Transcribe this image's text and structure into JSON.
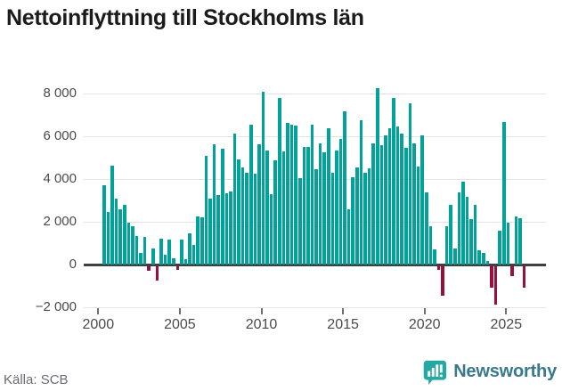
{
  "title": "Nettoinflyttning till Stockholms län",
  "source": "Källa: SCB",
  "logo": {
    "text": "Newsworthy",
    "icon": "newsworthy-bubble-chart-icon"
  },
  "colors": {
    "positive": "#00a29a",
    "negative": "#990f3d",
    "grid": "#e3e3e3",
    "zero_line": "#3f3f3f",
    "axis_text": "#4a4a4a",
    "title_text": "#1b1b1b",
    "source_text": "#6b6b73",
    "logo_text": "#39798e",
    "logo_icon_bg": "#26a8a2"
  },
  "chart_data": {
    "type": "bar",
    "title": "Nettoinflyttning till Stockholms län",
    "frequency": "quarterly",
    "start": "2000 Q1",
    "end": "2025 Q4",
    "grid": "horizontal",
    "legend": "none",
    "ylim": [
      -2400,
      8600
    ],
    "y_ticks": [
      {
        "label": "8 000",
        "value": 8000
      },
      {
        "label": "6 000",
        "value": 6000
      },
      {
        "label": "4 000",
        "value": 4000
      },
      {
        "label": "2 000",
        "value": 2000
      },
      {
        "label": "0",
        "value": 0
      },
      {
        "label": "−2 000",
        "value": -2000
      }
    ],
    "x_ticks": [
      {
        "label": "2000",
        "year": 2000
      },
      {
        "label": "2005",
        "year": 2005
      },
      {
        "label": "2010",
        "year": 2010
      },
      {
        "label": "2015",
        "year": 2015
      },
      {
        "label": "2020",
        "year": 2020
      },
      {
        "label": "2025",
        "year": 2025
      }
    ],
    "values": [
      3700,
      2450,
      4630,
      3080,
      2570,
      2780,
      1970,
      1800,
      1320,
      550,
      1300,
      -210,
      760,
      -670,
      1220,
      440,
      1180,
      280,
      -200,
      1180,
      240,
      1470,
      930,
      2250,
      2220,
      5070,
      3080,
      5610,
      3260,
      5420,
      3330,
      3400,
      6110,
      4900,
      4560,
      4290,
      6530,
      4260,
      5620,
      8080,
      5350,
      3290,
      4860,
      7810,
      5280,
      6630,
      6530,
      6500,
      4030,
      5490,
      5490,
      6560,
      4470,
      5670,
      5240,
      6390,
      4310,
      5320,
      5860,
      7150,
      2570,
      4100,
      4540,
      6740,
      4310,
      4510,
      5650,
      8260,
      5580,
      6040,
      6390,
      7810,
      6460,
      6110,
      5440,
      7530,
      5670,
      4580,
      6040,
      3360,
      1810,
      690,
      -170,
      -1390,
      1800,
      2780,
      740,
      3360,
      3890,
      3150,
      2130,
      2780,
      670,
      560,
      150,
      -1040,
      -1810,
      1600,
      6670,
      1940,
      -490,
      2250,
      2180,
      -1000
    ]
  }
}
